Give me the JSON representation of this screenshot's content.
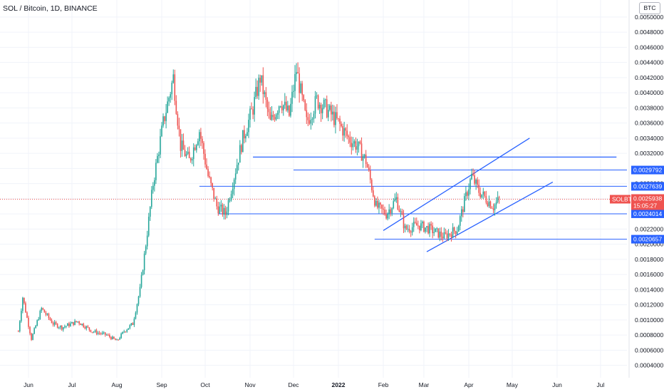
{
  "header": {
    "title": "SOL / Bitcoin, 1D, BINANCE",
    "scale_button": "BTC"
  },
  "chart_data": {
    "type": "candlestick",
    "symbol": "SOLBTC",
    "timeframe": "1D",
    "exchange": "BINANCE",
    "x_ticks": [
      "Jun",
      "Jul",
      "Aug",
      "Sep",
      "Oct",
      "Nov",
      "Dec",
      "2022",
      "Feb",
      "Mar",
      "Apr",
      "May",
      "Jun",
      "Jul"
    ],
    "y_ticks": [
      "0.0004000",
      "0.0006000",
      "0.0008000",
      "0.0010000",
      "0.0012000",
      "0.0014000",
      "0.0016000",
      "0.0018000",
      "0.0020000",
      "0.0022000",
      "0.0024000",
      "0.0026000",
      "0.0028000",
      "0.0030000",
      "0.0032000",
      "0.0034000",
      "0.0036000",
      "0.0038000",
      "0.0040000",
      "0.0042000",
      "0.0044000",
      "0.0046000",
      "0.0048000",
      "0.0050000"
    ],
    "ylim": [
      0.00033,
      0.00514
    ],
    "grid": true,
    "colors": {
      "up": "#26a69a",
      "down": "#ef5350",
      "line": "#2962ff",
      "last_price": "#ef5350"
    },
    "price_path": [
      {
        "date": "2021-05-25",
        "price": 0.00085
      },
      {
        "date": "2021-05-28",
        "price": 0.0013
      },
      {
        "date": "2021-06-03",
        "price": 0.00075
      },
      {
        "date": "2021-06-10",
        "price": 0.00115
      },
      {
        "date": "2021-06-18",
        "price": 0.00095
      },
      {
        "date": "2021-06-24",
        "price": 0.0009
      },
      {
        "date": "2021-07-05",
        "price": 0.00098
      },
      {
        "date": "2021-07-15",
        "price": 0.00085
      },
      {
        "date": "2021-07-25",
        "price": 0.0008
      },
      {
        "date": "2021-08-01",
        "price": 0.00072
      },
      {
        "date": "2021-08-06",
        "price": 0.00085
      },
      {
        "date": "2021-08-12",
        "price": 0.00095
      },
      {
        "date": "2021-08-17",
        "price": 0.0014
      },
      {
        "date": "2021-08-21",
        "price": 0.002
      },
      {
        "date": "2021-08-26",
        "price": 0.0028
      },
      {
        "date": "2021-09-02",
        "price": 0.0036
      },
      {
        "date": "2021-09-09",
        "price": 0.0042
      },
      {
        "date": "2021-09-14",
        "price": 0.0033
      },
      {
        "date": "2021-09-20",
        "price": 0.0031
      },
      {
        "date": "2021-09-27",
        "price": 0.0035
      },
      {
        "date": "2021-10-03",
        "price": 0.0029
      },
      {
        "date": "2021-10-09",
        "price": 0.0025
      },
      {
        "date": "2021-10-15",
        "price": 0.0024
      },
      {
        "date": "2021-10-21",
        "price": 0.0029
      },
      {
        "date": "2021-10-27",
        "price": 0.0034
      },
      {
        "date": "2021-11-03",
        "price": 0.0038
      },
      {
        "date": "2021-11-08",
        "price": 0.0042
      },
      {
        "date": "2021-11-15",
        "price": 0.0036
      },
      {
        "date": "2021-11-22",
        "price": 0.0039
      },
      {
        "date": "2021-11-28",
        "price": 0.0037
      },
      {
        "date": "2021-12-03",
        "price": 0.0043
      },
      {
        "date": "2021-12-10",
        "price": 0.0036
      },
      {
        "date": "2021-12-17",
        "price": 0.0039
      },
      {
        "date": "2021-12-23",
        "price": 0.0038
      },
      {
        "date": "2022-01-01",
        "price": 0.0036
      },
      {
        "date": "2022-01-08",
        "price": 0.0034
      },
      {
        "date": "2022-01-14",
        "price": 0.0033
      },
      {
        "date": "2022-01-20",
        "price": 0.0031
      },
      {
        "date": "2022-01-27",
        "price": 0.0025
      },
      {
        "date": "2022-02-03",
        "price": 0.0024
      },
      {
        "date": "2022-02-10",
        "price": 0.0026
      },
      {
        "date": "2022-02-16",
        "price": 0.0022
      },
      {
        "date": "2022-02-25",
        "price": 0.00225
      },
      {
        "date": "2022-03-05",
        "price": 0.0022
      },
      {
        "date": "2022-03-15",
        "price": 0.0021
      },
      {
        "date": "2022-03-24",
        "price": 0.0022
      },
      {
        "date": "2022-03-31",
        "price": 0.0027
      },
      {
        "date": "2022-04-03",
        "price": 0.0029
      },
      {
        "date": "2022-04-08",
        "price": 0.0027
      },
      {
        "date": "2022-04-13",
        "price": 0.0026
      },
      {
        "date": "2022-04-18",
        "price": 0.0025
      },
      {
        "date": "2022-04-22",
        "price": 0.00259
      }
    ],
    "horizontal_levels": [
      {
        "price": 0.00315,
        "start": "2021-11-03",
        "end": "2022-07-12"
      },
      {
        "price": 0.0029792,
        "start": "2021-12-01",
        "end": "2022-07-31",
        "label": "0.0029792"
      },
      {
        "price": 0.0027639,
        "start": "2021-09-27",
        "end": "2022-07-31",
        "label": "0.0027639"
      },
      {
        "price": 0.0024014,
        "start": "2021-10-10",
        "end": "2022-07-31",
        "label": "0.0024014"
      },
      {
        "price": 0.0020657,
        "start": "2022-01-26",
        "end": "2022-07-31",
        "label": "0.0020657"
      }
    ],
    "trend_lines": [
      {
        "start": {
          "date": "2022-02-01",
          "price": 0.00218
        },
        "end": {
          "date": "2022-05-13",
          "price": 0.0034
        }
      },
      {
        "start": {
          "date": "2022-03-03",
          "price": 0.0019
        },
        "end": {
          "date": "2022-05-29",
          "price": 0.00282
        }
      }
    ],
    "last_price": {
      "symbol": "SOLBTC",
      "value": "0.0025938",
      "countdown": "15:05:27",
      "price": 0.0025938
    }
  }
}
